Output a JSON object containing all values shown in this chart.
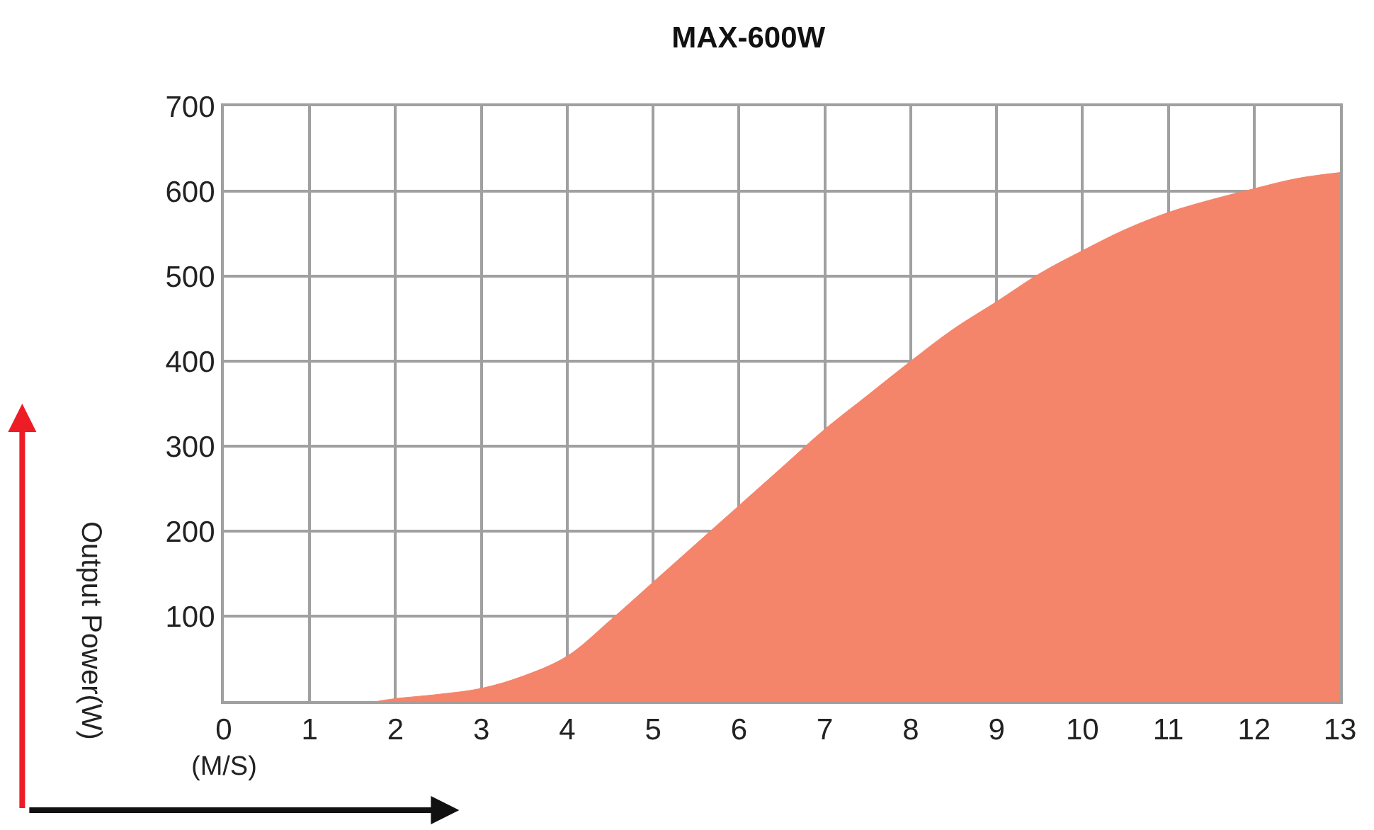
{
  "chart_data": {
    "type": "area",
    "title": "MAX-600W",
    "xlabel": "(M/S)",
    "ylabel": "Output Power(W)",
    "x": [
      1.8,
      2,
      2.5,
      3,
      3.5,
      4,
      4.5,
      5,
      5.5,
      6,
      6.5,
      7,
      7.5,
      8,
      8.5,
      9,
      9.5,
      10,
      10.5,
      11,
      11.5,
      12,
      12.5,
      13
    ],
    "series": [
      {
        "color": "#f4846a",
        "values": [
          0,
          3,
          8,
          15,
          30,
          53,
          95,
          140,
          185,
          230,
          275,
          320,
          360,
          400,
          438,
          470,
          503,
          530,
          555,
          575,
          590,
          603,
          615,
          622
        ]
      }
    ],
    "xlim": [
      0,
      13
    ],
    "xticks": [
      0,
      1,
      2,
      3,
      4,
      5,
      6,
      7,
      8,
      9,
      10,
      11,
      12,
      13
    ],
    "ylim": [
      0,
      700
    ],
    "yticks": [
      100,
      200,
      300,
      400,
      500,
      600,
      700
    ],
    "grid": true
  }
}
